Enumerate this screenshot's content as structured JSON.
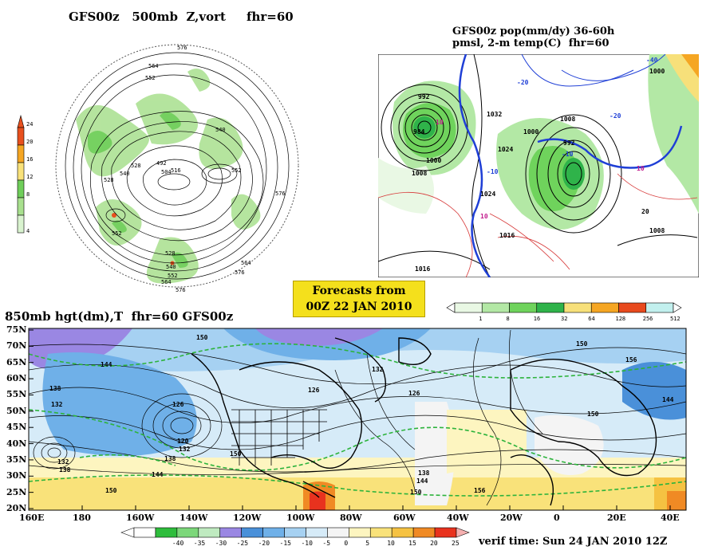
{
  "panels": {
    "nh_500mb": {
      "title": "GFS00z   500mb  Z,vort     fhr=60",
      "colorbar_labels": [
        "24",
        "20",
        "16",
        "12",
        "8",
        "4"
      ],
      "colorbar_colors": [
        "#e8501e",
        "#f5a623",
        "#f9e27a",
        "#6fce5a",
        "#a8e08e",
        "#d9f3cf"
      ],
      "contour_labels": [
        "576",
        "564",
        "552",
        "540",
        "528",
        "516",
        "504",
        "492",
        "528",
        "540",
        "552",
        "576",
        "552",
        "564",
        "576",
        "528",
        "540",
        "552",
        "564",
        "576"
      ]
    },
    "na_precip": {
      "title_line1": "GFS00z pop(mm/dy) 36-60h",
      "title_line2": "pmsl, 2-m temp(C)  fhr=60",
      "colorbar_labels": [
        "1",
        "8",
        "16",
        "32",
        "64",
        "128",
        "256",
        "512"
      ],
      "colorbar_colors": [
        "#e9f8e4",
        "#b3e8a5",
        "#6fd35c",
        "#2fb34a",
        "#f7e07a",
        "#f5a623",
        "#e84a1e",
        "#c2f0ee"
      ],
      "isobar_labels": [
        "992",
        "1000",
        "984",
        "1008",
        "1032",
        "1024",
        "1024",
        "1008",
        "1000",
        "992",
        "1016",
        "1016",
        "1008",
        "1000"
      ],
      "temp_labels": [
        "10",
        "-10",
        "-20",
        "10",
        "-10",
        "10",
        "-20",
        "20",
        "-40"
      ]
    },
    "banner": {
      "line1": "Forecasts from",
      "line2": "00Z 22 JAN 2010"
    },
    "global_850mb": {
      "title": "850mb hgt(dm),T  fhr=60 GFS00z",
      "lat_labels": [
        "75N",
        "70N",
        "65N",
        "60N",
        "55N",
        "50N",
        "45N",
        "40N",
        "35N",
        "30N",
        "25N",
        "20N"
      ],
      "lon_labels": [
        "160E",
        "180",
        "160W",
        "140W",
        "120W",
        "100W",
        "80W",
        "60W",
        "40W",
        "20W",
        "0",
        "20E",
        "40E"
      ],
      "height_labels": [
        "150",
        "144",
        "138",
        "132",
        "126",
        "120",
        "132",
        "138",
        "150",
        "132",
        "126",
        "126",
        "144",
        "138",
        "150",
        "156",
        "150",
        "150",
        "156",
        "144",
        "132",
        "138",
        "144",
        "150"
      ],
      "colorbar_labels": [
        "-40",
        "-35",
        "-30",
        "-25",
        "-20",
        "-15",
        "-10",
        "-5",
        "0",
        "5",
        "10",
        "15",
        "20",
        "25"
      ],
      "colorbar_colors": [
        "#2ebd3c",
        "#7cd77a",
        "#bfeac0",
        "#9a87e3",
        "#4a90d9",
        "#6fb0e8",
        "#a6d1f2",
        "#d6ebf8",
        "#f4f4f4",
        "#fdf5c0",
        "#f9e27a",
        "#f5c242",
        "#f08a24",
        "#e8321e",
        "#f5b0b0"
      ],
      "verif_time": "verif time: Sun 24 JAN 2010 12Z"
    }
  }
}
